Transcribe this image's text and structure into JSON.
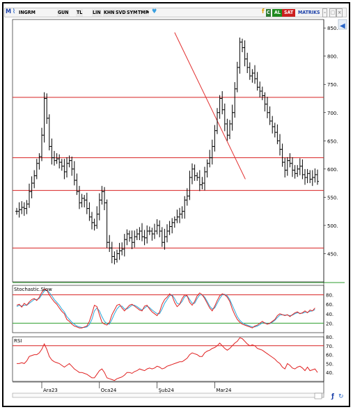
{
  "toolbar": {
    "logo": "M",
    "symbol": "INGRM",
    "buttons": [
      "GUN",
      "TL",
      "LIN",
      "KHN",
      "SVD",
      "SYM",
      "TMP"
    ],
    "f_label": "f",
    "c_label": "C",
    "al_label": "AL",
    "sat_label": "SAT",
    "matriks_label": "MATRIKS"
  },
  "colors": {
    "ohlc": "#000000",
    "support": "#d82020",
    "trend": "#e23030",
    "stoch_k": "#e02020",
    "stoch_d": "#29a7d8",
    "stoch_mid": "#2e9e2e",
    "rsi": "#e02020",
    "panel_sep": "#2e9e2e",
    "al_bg": "#1f8a1f",
    "sat_bg": "#cc1f1f"
  },
  "chart_data": [
    {
      "type": "ohlc",
      "title": "",
      "xlabel": "",
      "ylabel": "",
      "ylim": [
        400,
        865
      ],
      "y_ticks": [
        "850.",
        "800.",
        "750.",
        "700.",
        "650.",
        "600.",
        "550.",
        "500.",
        "450."
      ],
      "x_ticks": [
        "Ara23",
        "Oca24",
        "Şub24",
        "Mar24"
      ],
      "horizontal_lines": [
        727,
        620,
        562,
        460
      ],
      "trendline": {
        "from": {
          "index": 63,
          "value": 842
        },
        "to": {
          "index": 89,
          "value": 592
        }
      },
      "close": [
        525,
        528,
        532,
        530,
        538,
        560,
        575,
        588,
        610,
        622,
        660,
        725,
        690,
        640,
        620,
        615,
        618,
        612,
        605,
        595,
        610,
        615,
        600,
        580,
        560,
        540,
        548,
        545,
        530,
        515,
        505,
        500,
        520,
        545,
        560,
        540,
        470,
        460,
        445,
        440,
        450,
        455,
        458,
        475,
        485,
        478,
        470,
        480,
        485,
        490,
        480,
        478,
        490,
        490,
        485,
        490,
        500,
        490,
        470,
        480,
        490,
        498,
        505,
        510,
        515,
        520,
        525,
        545,
        552,
        585,
        600,
        588,
        585,
        572,
        575,
        595,
        610,
        620,
        640,
        668,
        700,
        725,
        705,
        680,
        660,
        680,
        700,
        742,
        780,
        825,
        815,
        795,
        780,
        765,
        770,
        760,
        745,
        738,
        730,
        715,
        700,
        685,
        675,
        665,
        650,
        635,
        612,
        598,
        615,
        610,
        598,
        592,
        600,
        605,
        590,
        585,
        592,
        582,
        585,
        590,
        578
      ]
    },
    {
      "type": "line",
      "title": "Stochastic.Slow",
      "ylim": [
        0,
        100
      ],
      "y_ticks": [
        "80.",
        "60.",
        "40.",
        "20."
      ],
      "levels": [
        80,
        20
      ],
      "series": [
        {
          "key": "k",
          "values": [
            58,
            60,
            54,
            62,
            58,
            65,
            70,
            72,
            68,
            75,
            85,
            92,
            90,
            80,
            72,
            65,
            60,
            52,
            45,
            40,
            28,
            24,
            18,
            14,
            12,
            10,
            10,
            12,
            14,
            24,
            40,
            58,
            55,
            38,
            22,
            18,
            16,
            22,
            38,
            48,
            58,
            60,
            52,
            46,
            52,
            58,
            60,
            56,
            52,
            48,
            46,
            56,
            58,
            50,
            44,
            40,
            36,
            44,
            60,
            70,
            75,
            82,
            78,
            64,
            55,
            60,
            72,
            80,
            78,
            64,
            58,
            66,
            78,
            84,
            80,
            72,
            62,
            52,
            46,
            56,
            68,
            78,
            82,
            80,
            75,
            66,
            50,
            38,
            28,
            22,
            18,
            16,
            14,
            12,
            10,
            14,
            16,
            20,
            24,
            20,
            18,
            20,
            24,
            28,
            36,
            40,
            38,
            36,
            38,
            34,
            38,
            42,
            44,
            40,
            42,
            46,
            42,
            48,
            46,
            52
          ]
        },
        {
          "key": "d",
          "values": [
            55,
            58,
            56,
            58,
            58,
            62,
            66,
            70,
            70,
            72,
            80,
            88,
            90,
            85,
            78,
            70,
            64,
            58,
            50,
            44,
            34,
            28,
            22,
            18,
            14,
            12,
            11,
            11,
            12,
            17,
            28,
            46,
            52,
            46,
            34,
            24,
            19,
            18,
            28,
            40,
            50,
            56,
            56,
            50,
            50,
            54,
            58,
            58,
            55,
            51,
            48,
            52,
            56,
            53,
            48,
            44,
            40,
            40,
            50,
            62,
            70,
            78,
            80,
            72,
            62,
            60,
            66,
            76,
            78,
            70,
            62,
            62,
            72,
            80,
            80,
            75,
            66,
            56,
            50,
            52,
            62,
            72,
            80,
            81,
            78,
            70,
            58,
            46,
            34,
            26,
            21,
            18,
            16,
            14,
            12,
            12,
            14,
            17,
            21,
            21,
            19,
            19,
            22,
            26,
            32,
            37,
            38,
            37,
            37,
            36,
            37,
            40,
            42,
            41,
            41,
            43,
            43,
            45,
            46,
            49
          ]
        }
      ]
    },
    {
      "type": "line",
      "title": "RSI",
      "ylim": [
        30,
        80
      ],
      "y_ticks": [
        "80.",
        "70.",
        "60.",
        "50.",
        "40."
      ],
      "levels": [
        70
      ],
      "series": [
        {
          "key": "rsi",
          "values": [
            50,
            50,
            51,
            50,
            53,
            58,
            59,
            60,
            60,
            62,
            66,
            72,
            66,
            58,
            54,
            52,
            51,
            50,
            48,
            46,
            48,
            50,
            47,
            44,
            42,
            40,
            40,
            39,
            38,
            36,
            34,
            34,
            38,
            42,
            44,
            40,
            34,
            33,
            32,
            31,
            33,
            34,
            35,
            37,
            40,
            40,
            39,
            41,
            42,
            44,
            43,
            42,
            44,
            45,
            44,
            45,
            47,
            46,
            44,
            45,
            47,
            48,
            49,
            50,
            51,
            52,
            52,
            54,
            56,
            60,
            62,
            61,
            60,
            58,
            58,
            62,
            64,
            65,
            67,
            68,
            70,
            73,
            70,
            67,
            65,
            67,
            70,
            73,
            75,
            79,
            78,
            75,
            72,
            70,
            71,
            70,
            67,
            66,
            65,
            63,
            61,
            59,
            57,
            55,
            52,
            50,
            46,
            44,
            50,
            48,
            45,
            44,
            46,
            47,
            45,
            42,
            46,
            42,
            43,
            44,
            40
          ]
        }
      ]
    }
  ]
}
